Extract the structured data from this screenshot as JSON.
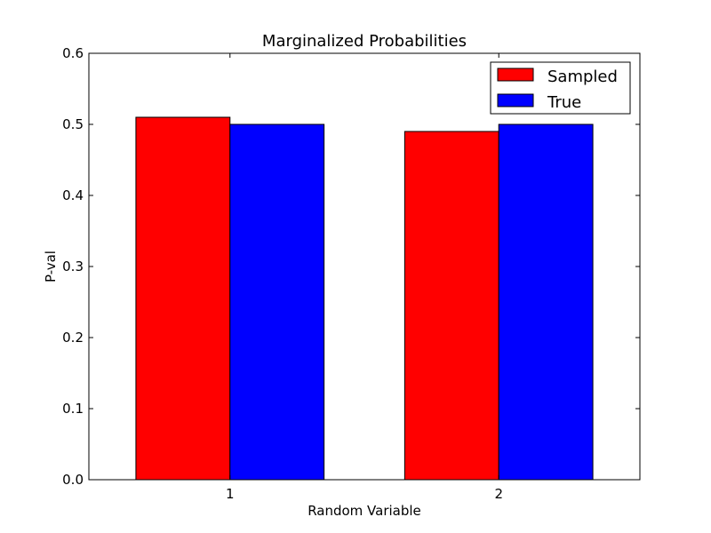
{
  "chart_data": {
    "type": "bar",
    "title": "Marginalized Probabilities",
    "xlabel": "Random Variable",
    "ylabel": "P-val",
    "categories": [
      "1",
      "2"
    ],
    "series": [
      {
        "name": "Sampled",
        "color": "#ff0000",
        "values": [
          0.51,
          0.49
        ]
      },
      {
        "name": "True",
        "color": "#0000ff",
        "values": [
          0.5,
          0.5
        ]
      }
    ],
    "ylim": [
      0,
      0.6
    ],
    "yticks": [
      "0.0",
      "0.1",
      "0.2",
      "0.3",
      "0.4",
      "0.5",
      "0.6"
    ],
    "grid": false,
    "legend_position": "top-right"
  }
}
